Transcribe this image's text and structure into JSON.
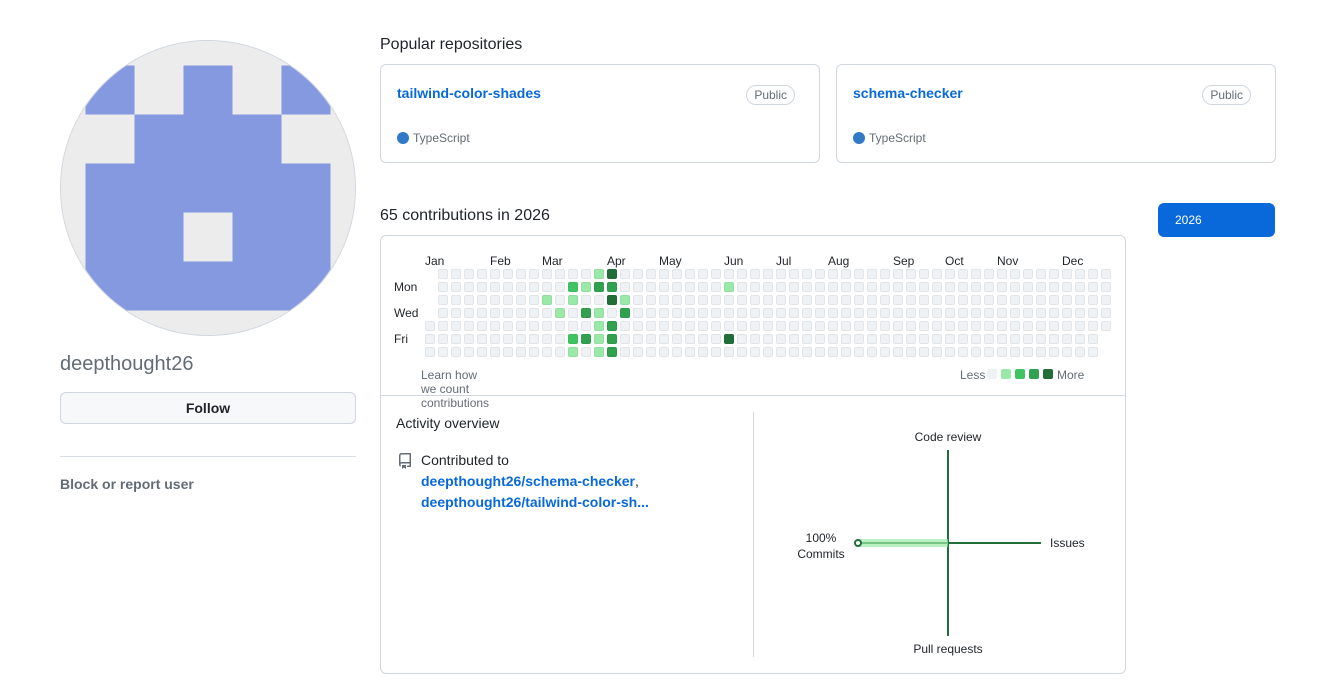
{
  "profile": {
    "username": "deepthought26",
    "follow_label": "Follow",
    "block_label": "Block or report user",
    "avatar_colors": {
      "fill": "#8499df",
      "background": "#ececec"
    }
  },
  "popular": {
    "title": "Popular repositories",
    "repos": [
      {
        "name": "tailwind-color-shades",
        "visibility": "Public",
        "language": "TypeScript",
        "language_color": "#3178c6"
      },
      {
        "name": "schema-checker",
        "visibility": "Public",
        "language": "TypeScript",
        "language_color": "#3178c6"
      }
    ]
  },
  "contributions": {
    "summary": "65 contributions in 2026",
    "year_button": "2026",
    "months": [
      "Jan",
      "Feb",
      "Mar",
      "Apr",
      "May",
      "Jun",
      "Jul",
      "Aug",
      "Sep",
      "Oct",
      "Nov",
      "Dec"
    ],
    "day_labels": [
      "Mon",
      "Wed",
      "Fri"
    ],
    "learn_link": "Learn how we count contributions",
    "legend_less": "Less",
    "legend_more": "More",
    "level_colors": [
      "#ebedf0",
      "#9be9a8",
      "#40c463",
      "#30a14e",
      "#216e39"
    ],
    "active_days": [
      {
        "week": 13,
        "day": 0,
        "level": 1
      },
      {
        "week": 14,
        "day": 0,
        "level": 4
      },
      {
        "week": 13,
        "day": 1,
        "level": 3
      },
      {
        "week": 14,
        "day": 1,
        "level": 3
      },
      {
        "week": 12,
        "day": 1,
        "level": 1
      },
      {
        "week": 11,
        "day": 1,
        "level": 2
      },
      {
        "week": 9,
        "day": 2,
        "level": 1
      },
      {
        "week": 11,
        "day": 2,
        "level": 1
      },
      {
        "week": 14,
        "day": 2,
        "level": 4
      },
      {
        "week": 15,
        "day": 2,
        "level": 1
      },
      {
        "week": 10,
        "day": 3,
        "level": 1
      },
      {
        "week": 12,
        "day": 3,
        "level": 3
      },
      {
        "week": 13,
        "day": 3,
        "level": 1
      },
      {
        "week": 15,
        "day": 3,
        "level": 3
      },
      {
        "week": 13,
        "day": 4,
        "level": 1
      },
      {
        "week": 14,
        "day": 4,
        "level": 3
      },
      {
        "week": 11,
        "day": 5,
        "level": 2
      },
      {
        "week": 12,
        "day": 5,
        "level": 3
      },
      {
        "week": 13,
        "day": 5,
        "level": 1
      },
      {
        "week": 14,
        "day": 5,
        "level": 3
      },
      {
        "week": 11,
        "day": 6,
        "level": 1
      },
      {
        "week": 13,
        "day": 6,
        "level": 1
      },
      {
        "week": 14,
        "day": 6,
        "level": 3
      },
      {
        "week": 23,
        "day": 1,
        "level": 1
      },
      {
        "week": 23,
        "day": 5,
        "level": 4
      }
    ]
  },
  "activity": {
    "title": "Activity overview",
    "contributed_to": "Contributed to",
    "repos": [
      "deepthought26/schema-checker",
      "deepthought26/tailwind-color-sh..."
    ],
    "separator": ",",
    "icon": "repo-icon",
    "graph": {
      "top": "Code review",
      "right": "Issues",
      "bottom": "Pull requests",
      "left_pct": "100%",
      "left_label": "Commits",
      "commits_share": 1.0,
      "axis_color": "#216e39",
      "bar_color": "#9be9a8"
    }
  }
}
